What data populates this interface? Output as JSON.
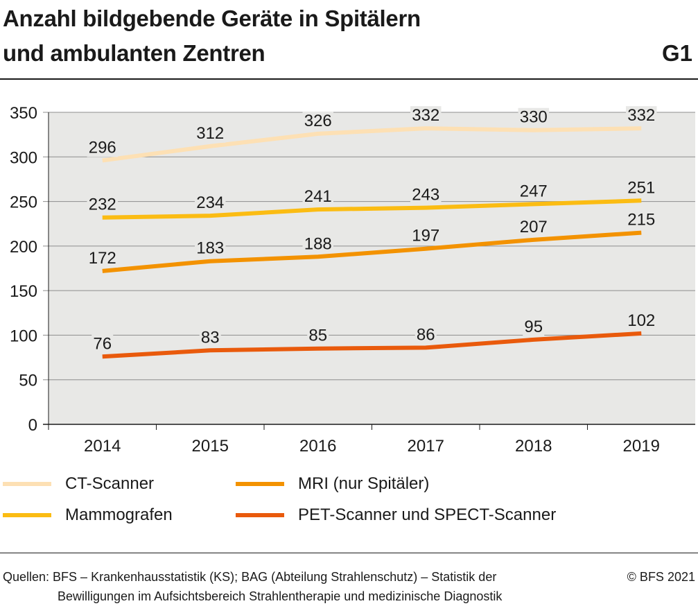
{
  "header": {
    "title_line1": "Anzahl bildgebende Geräte in Spitälern",
    "title_line2": "und ambulanten Zentren",
    "graphic_number": "G1"
  },
  "chart_data": {
    "type": "line",
    "x": [
      "2014",
      "2015",
      "2016",
      "2017",
      "2018",
      "2019"
    ],
    "ylim": [
      0,
      350
    ],
    "yticks": [
      0,
      50,
      100,
      150,
      200,
      250,
      300,
      350
    ],
    "grid": "horizontal",
    "legend_position": "bottom",
    "series": [
      {
        "name": "CT-Scanner",
        "color": "#fde0b4",
        "values": [
          296,
          312,
          326,
          332,
          330,
          332
        ]
      },
      {
        "name": "Mammografen",
        "color": "#fbbc13",
        "values": [
          232,
          234,
          241,
          243,
          247,
          251
        ]
      },
      {
        "name": "MRI (nur Spitäler)",
        "color": "#f39200",
        "values": [
          172,
          183,
          188,
          197,
          207,
          215
        ]
      },
      {
        "name": "PET-Scanner und SPECT-Scanner",
        "color": "#e95a0c",
        "values": [
          76,
          83,
          85,
          86,
          95,
          102
        ]
      }
    ],
    "plot_background": "#e8e8e6"
  },
  "footer": {
    "source_line1": "Quellen: BFS – Krankenhausstatistik (KS); BAG (Abteilung Strahlenschutz) – Statistik der",
    "source_line2": "Bewilligungen im Aufsichtsbereich Strahlentherapie und medizinische Diagnostik",
    "copyright": "© BFS 2021"
  }
}
